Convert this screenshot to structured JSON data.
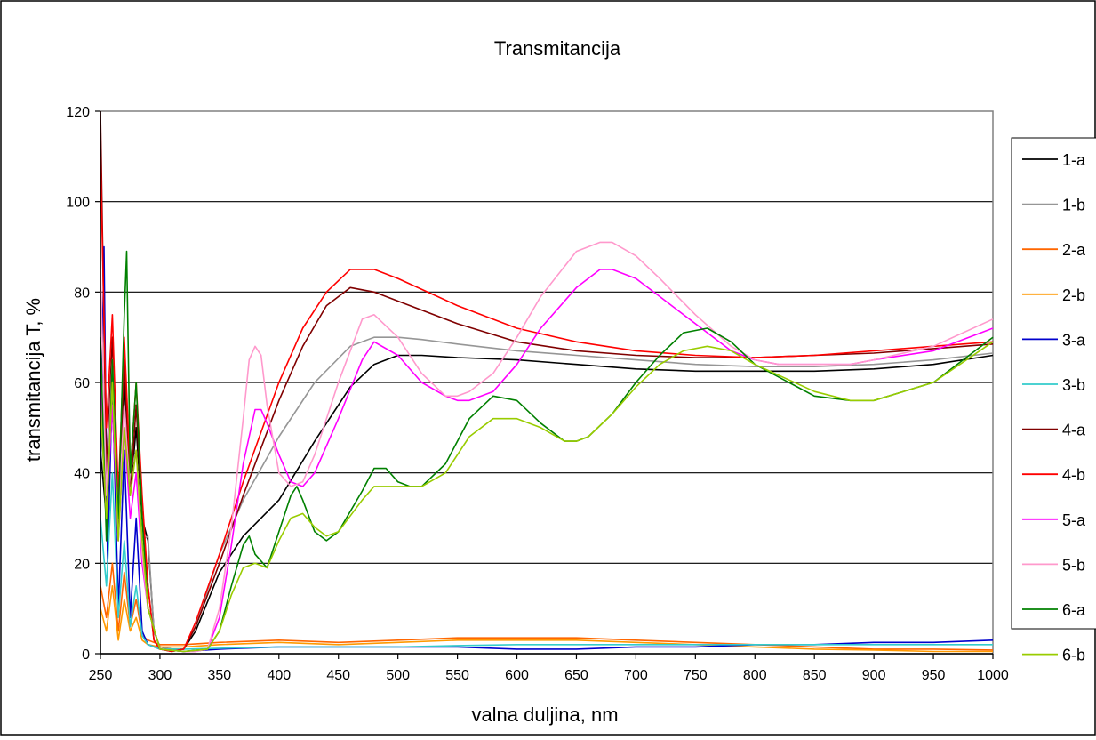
{
  "chart_data": {
    "type": "line",
    "title": "Transmitancija",
    "xlabel": "valna duljina, nm",
    "ylabel": "transmitancija T, %",
    "xlim": [
      250,
      1000
    ],
    "ylim": [
      0,
      120
    ],
    "x_ticks": [
      250,
      300,
      350,
      400,
      450,
      500,
      550,
      600,
      650,
      700,
      750,
      800,
      850,
      900,
      950,
      1000
    ],
    "y_ticks": [
      0,
      20,
      40,
      60,
      80,
      100,
      120
    ],
    "grid": "horizontal major gridlines",
    "legend_position": "right",
    "series": [
      {
        "name": "1-a",
        "color": "#000000",
        "x": [
          250,
          255,
          260,
          265,
          270,
          275,
          280,
          285,
          290,
          295,
          300,
          310,
          320,
          330,
          350,
          370,
          400,
          430,
          460,
          480,
          500,
          520,
          550,
          600,
          650,
          700,
          750,
          800,
          850,
          900,
          950,
          1000
        ],
        "y": [
          45,
          30,
          55,
          25,
          60,
          35,
          50,
          30,
          25,
          5,
          1.5,
          1,
          1,
          5,
          18,
          26,
          34,
          47,
          59,
          64,
          66,
          66,
          65.5,
          65,
          64,
          63,
          62.5,
          62.5,
          62.5,
          63,
          64,
          66
        ]
      },
      {
        "name": "1-b",
        "color": "#969696",
        "x": [
          250,
          255,
          260,
          265,
          270,
          275,
          280,
          285,
          290,
          295,
          300,
          310,
          320,
          330,
          350,
          370,
          400,
          430,
          460,
          480,
          500,
          520,
          550,
          600,
          650,
          700,
          750,
          800,
          850,
          900,
          950,
          1000
        ],
        "y": [
          50,
          35,
          60,
          30,
          55,
          40,
          45,
          25,
          26,
          5,
          1.5,
          1,
          1,
          6,
          22,
          34,
          48,
          60,
          68,
          70,
          70,
          69.5,
          68.5,
          67,
          66,
          65,
          64,
          63.5,
          63.5,
          64,
          65,
          66.5
        ]
      },
      {
        "name": "2-a",
        "color": "#ff6600",
        "x": [
          250,
          255,
          260,
          265,
          270,
          275,
          280,
          285,
          290,
          300,
          320,
          350,
          400,
          450,
          500,
          550,
          600,
          650,
          700,
          750,
          800,
          850,
          900,
          950,
          1000
        ],
        "y": [
          15,
          8,
          20,
          5,
          18,
          6,
          12,
          4,
          3,
          2,
          2,
          2.5,
          3,
          2.5,
          3,
          3.5,
          3.5,
          3.5,
          3,
          2.5,
          2,
          1.5,
          1,
          1,
          0.8
        ]
      },
      {
        "name": "2-b",
        "color": "#ff9900",
        "x": [
          250,
          255,
          260,
          265,
          270,
          275,
          280,
          285,
          290,
          300,
          320,
          350,
          400,
          450,
          500,
          550,
          600,
          650,
          700,
          750,
          800,
          850,
          900,
          950,
          1000
        ],
        "y": [
          10,
          5,
          15,
          3,
          12,
          5,
          8,
          3,
          2,
          1.5,
          1.5,
          2,
          2.5,
          2,
          2.5,
          3,
          3,
          3,
          2.5,
          2,
          1.5,
          1,
          0.8,
          0.5,
          0.5
        ]
      },
      {
        "name": "3-a",
        "color": "#0000cc",
        "x": [
          250,
          253,
          256,
          260,
          265,
          270,
          275,
          280,
          285,
          290,
          300,
          320,
          350,
          400,
          450,
          500,
          550,
          600,
          650,
          700,
          750,
          800,
          850,
          900,
          950,
          1000
        ],
        "y": [
          40,
          90,
          20,
          60,
          10,
          45,
          8,
          30,
          5,
          2,
          1,
          0.5,
          1,
          1.5,
          1.5,
          1.5,
          1.5,
          1,
          1,
          1.5,
          1.5,
          2,
          2,
          2.5,
          2.5,
          3
        ]
      },
      {
        "name": "3-b",
        "color": "#33cccc",
        "x": [
          250,
          255,
          260,
          265,
          270,
          275,
          280,
          285,
          290,
          300,
          320,
          350,
          400,
          450,
          500,
          550,
          600,
          650,
          700,
          750,
          800,
          850,
          900,
          950,
          1000
        ],
        "y": [
          30,
          15,
          40,
          8,
          25,
          6,
          15,
          4,
          2,
          1,
          1,
          1.2,
          1.5,
          1.5,
          1.5,
          1.8,
          2,
          2,
          2,
          2,
          2,
          2,
          2,
          2,
          2
        ]
      },
      {
        "name": "4-a",
        "color": "#800000",
        "x": [
          250,
          255,
          260,
          265,
          270,
          275,
          280,
          285,
          290,
          295,
          300,
          310,
          320,
          330,
          350,
          370,
          400,
          420,
          440,
          460,
          480,
          500,
          550,
          600,
          650,
          700,
          750,
          800,
          850,
          900,
          950,
          1000
        ],
        "y": [
          120,
          40,
          70,
          30,
          65,
          35,
          55,
          30,
          15,
          3,
          1,
          0.5,
          1,
          6,
          20,
          35,
          56,
          68,
          77,
          81,
          80,
          78,
          73,
          69,
          67,
          66,
          65.5,
          65.5,
          66,
          66.5,
          67.5,
          68.5
        ]
      },
      {
        "name": "4-b",
        "color": "#ff0000",
        "x": [
          250,
          255,
          260,
          265,
          270,
          275,
          280,
          285,
          290,
          295,
          300,
          310,
          320,
          330,
          350,
          370,
          400,
          420,
          440,
          460,
          480,
          500,
          550,
          600,
          650,
          700,
          750,
          800,
          850,
          900,
          950,
          1000
        ],
        "y": [
          110,
          50,
          75,
          35,
          70,
          40,
          60,
          35,
          15,
          3,
          1,
          0.5,
          1,
          7,
          22,
          38,
          60,
          72,
          80,
          85,
          85,
          83,
          77,
          72,
          69,
          67,
          66,
          65.5,
          66,
          67,
          68,
          69
        ]
      },
      {
        "name": "5-a",
        "color": "#ff00ff",
        "x": [
          250,
          255,
          260,
          265,
          270,
          275,
          280,
          285,
          290,
          300,
          320,
          330,
          340,
          350,
          360,
          370,
          380,
          385,
          390,
          400,
          410,
          420,
          430,
          450,
          470,
          480,
          500,
          520,
          540,
          550,
          560,
          580,
          600,
          620,
          650,
          670,
          680,
          700,
          720,
          750,
          780,
          800,
          820,
          850,
          880,
          900,
          950,
          1000
        ],
        "y": [
          60,
          30,
          55,
          25,
          50,
          30,
          40,
          20,
          10,
          1,
          0.5,
          0.5,
          1,
          8,
          24,
          42,
          54,
          54,
          51,
          44,
          38,
          37,
          40,
          52,
          65,
          69,
          66,
          60,
          57,
          56,
          56,
          58,
          64,
          72,
          81,
          85,
          85,
          83,
          79,
          73,
          67,
          65,
          64,
          64,
          64,
          65,
          67,
          72
        ]
      },
      {
        "name": "5-b",
        "color": "#ff99cc",
        "x": [
          250,
          255,
          260,
          265,
          270,
          275,
          280,
          285,
          290,
          300,
          320,
          330,
          340,
          350,
          360,
          370,
          375,
          380,
          385,
          390,
          400,
          410,
          420,
          430,
          450,
          470,
          480,
          500,
          520,
          540,
          550,
          560,
          580,
          600,
          620,
          650,
          670,
          680,
          700,
          720,
          750,
          780,
          800,
          820,
          850,
          880,
          900,
          950,
          1000
        ],
        "y": [
          85,
          35,
          65,
          30,
          55,
          35,
          45,
          22,
          10,
          1,
          0.5,
          0.5,
          1,
          10,
          28,
          52,
          65,
          68,
          66,
          55,
          40,
          37,
          38,
          44,
          60,
          74,
          75,
          70,
          62,
          57,
          57,
          58,
          62,
          70,
          79,
          89,
          91,
          91,
          88,
          83,
          75,
          68,
          65,
          64,
          64,
          64,
          65,
          68,
          74
        ]
      },
      {
        "name": "6-a",
        "color": "#008000",
        "x": [
          250,
          255,
          260,
          265,
          270,
          272,
          275,
          280,
          285,
          290,
          300,
          320,
          340,
          350,
          360,
          370,
          375,
          380,
          390,
          400,
          410,
          415,
          420,
          430,
          440,
          450,
          470,
          480,
          490,
          500,
          510,
          520,
          540,
          560,
          580,
          600,
          620,
          640,
          650,
          660,
          680,
          700,
          720,
          740,
          760,
          780,
          800,
          850,
          880,
          900,
          950,
          1000
        ],
        "y": [
          70,
          25,
          65,
          30,
          75,
          89,
          40,
          60,
          30,
          10,
          1,
          0.5,
          1,
          5,
          15,
          24,
          26,
          22,
          19,
          27,
          35,
          37,
          34,
          27,
          25,
          27,
          36,
          41,
          41,
          38,
          37,
          37,
          42,
          52,
          57,
          56,
          51,
          47,
          47,
          48,
          53,
          60,
          66,
          71,
          72,
          69,
          64,
          57,
          56,
          56,
          60,
          70
        ]
      },
      {
        "name": "6-b",
        "color": "#99cc00",
        "x": [
          250,
          255,
          260,
          265,
          270,
          275,
          280,
          285,
          290,
          300,
          320,
          340,
          350,
          360,
          370,
          380,
          390,
          400,
          410,
          420,
          430,
          440,
          450,
          470,
          480,
          490,
          500,
          510,
          520,
          540,
          560,
          580,
          600,
          620,
          640,
          650,
          660,
          680,
          700,
          720,
          740,
          760,
          780,
          800,
          850,
          880,
          900,
          950,
          1000
        ],
        "y": [
          55,
          30,
          60,
          25,
          50,
          35,
          45,
          25,
          10,
          1,
          0.5,
          1,
          5,
          13,
          19,
          20,
          19,
          25,
          30,
          31,
          28,
          26,
          27,
          34,
          37,
          37,
          37,
          37,
          37,
          40,
          48,
          52,
          52,
          50,
          47,
          47,
          48,
          53,
          59,
          64,
          67,
          68,
          67,
          64,
          58,
          56,
          56,
          60,
          69
        ]
      }
    ]
  }
}
